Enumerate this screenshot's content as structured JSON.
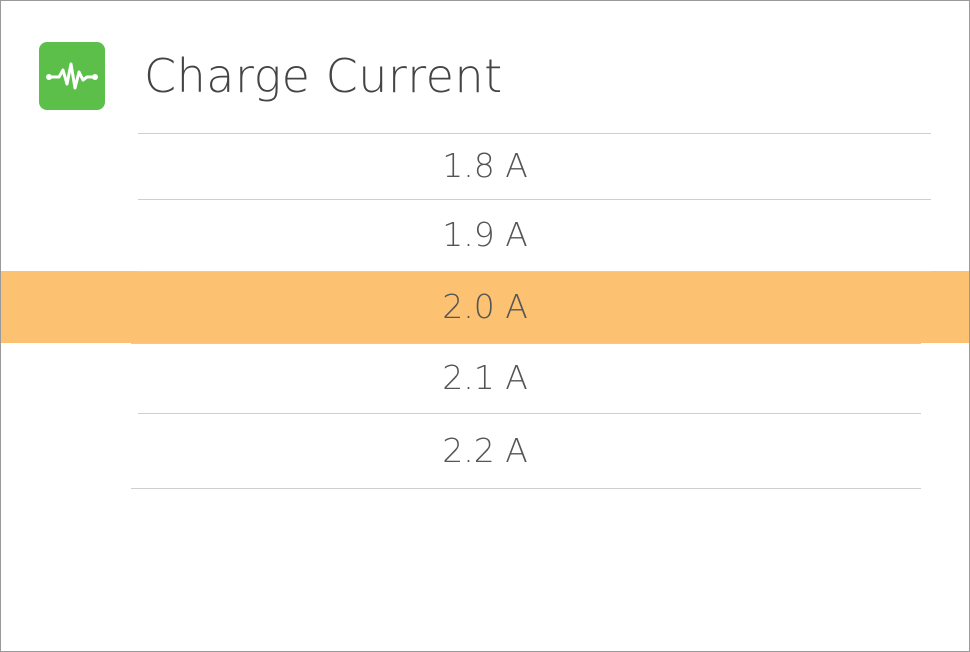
{
  "header": {
    "title": "Charge Current"
  },
  "options": [
    "1.8 A",
    "1.9 A",
    "2.0 A",
    "2.1 A",
    "2.2 A"
  ],
  "selected_index": 2
}
